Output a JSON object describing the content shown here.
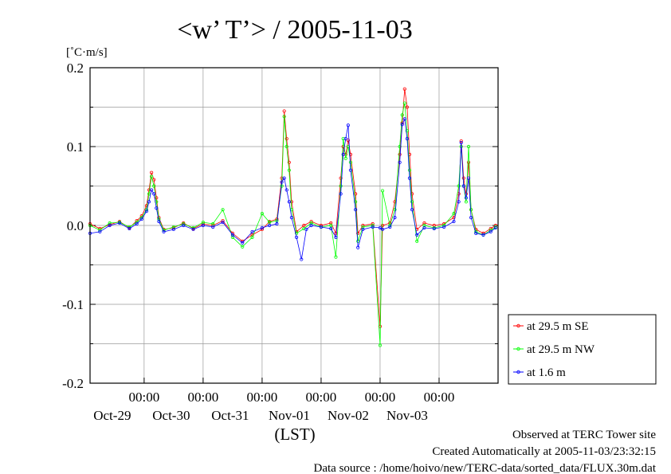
{
  "chart_data": {
    "type": "line",
    "title": "<w’ T’> / 2005-11-03",
    "ylabel": "[˚C·m/s]",
    "xlabel": "(LST)",
    "ylim": [
      -0.2,
      0.2
    ],
    "yticks": [
      {
        "value": 0.2,
        "label": "0.2"
      },
      {
        "value": 0.1,
        "label": "0.1"
      },
      {
        "value": 0.0,
        "label": "0.0"
      },
      {
        "value": -0.1,
        "label": "-0.1"
      },
      {
        "value": -0.2,
        "label": "-0.2"
      }
    ],
    "xlim": [
      "2005-10-28 02:00",
      "2005-11-04 00:00"
    ],
    "xticks": [
      {
        "x": "2005-10-29 00:00",
        "time": "00:00",
        "date": "Oct-29"
      },
      {
        "x": "2005-10-30 00:00",
        "time": "00:00",
        "date": "Oct-30"
      },
      {
        "x": "2005-10-31 00:00",
        "time": "00:00",
        "date": "Oct-31"
      },
      {
        "x": "2005-11-01 00:00",
        "time": "00:00",
        "date": "Nov-01"
      },
      {
        "x": "2005-11-02 00:00",
        "time": "00:00",
        "date": "Nov-02"
      },
      {
        "x": "2005-11-03 00:00",
        "time": "00:00",
        "date": "Nov-03"
      }
    ],
    "grid": true,
    "legend_position": "right",
    "series": [
      {
        "name": "at 29.5 m SE",
        "color": "#ff0000",
        "points": [
          [
            "2005-10-28 02:00",
            0.002
          ],
          [
            "2005-10-28 06:00",
            -0.004
          ],
          [
            "2005-10-28 10:00",
            0.001
          ],
          [
            "2005-10-28 14:00",
            0.005
          ],
          [
            "2005-10-28 18:00",
            -0.003
          ],
          [
            "2005-10-28 21:00",
            0.006
          ],
          [
            "2005-10-28 23:00",
            0.012
          ],
          [
            "2005-10-29 01:00",
            0.025
          ],
          [
            "2005-10-29 02:00",
            0.045
          ],
          [
            "2005-10-29 03:00",
            0.067
          ],
          [
            "2005-10-29 04:00",
            0.058
          ],
          [
            "2005-10-29 05:00",
            0.035
          ],
          [
            "2005-10-29 06:00",
            0.01
          ],
          [
            "2005-10-29 08:00",
            -0.005
          ],
          [
            "2005-10-29 12:00",
            -0.003
          ],
          [
            "2005-10-29 16:00",
            0.003
          ],
          [
            "2005-10-29 20:00",
            -0.004
          ],
          [
            "2005-10-30 00:00",
            0.002
          ],
          [
            "2005-10-30 04:00",
            0.0
          ],
          [
            "2005-10-30 08:00",
            0.006
          ],
          [
            "2005-10-30 12:00",
            -0.01
          ],
          [
            "2005-10-30 16:00",
            -0.02
          ],
          [
            "2005-10-30 20:00",
            -0.012
          ],
          [
            "2005-10-31 00:00",
            -0.005
          ],
          [
            "2005-10-31 03:00",
            0.005
          ],
          [
            "2005-10-31 06:00",
            0.008
          ],
          [
            "2005-10-31 08:00",
            0.06
          ],
          [
            "2005-10-31 09:00",
            0.145
          ],
          [
            "2005-10-31 10:00",
            0.11
          ],
          [
            "2005-10-31 11:00",
            0.08
          ],
          [
            "2005-10-31 12:00",
            0.03
          ],
          [
            "2005-10-31 14:00",
            -0.008
          ],
          [
            "2005-10-31 17:00",
            0.0
          ],
          [
            "2005-10-31 20:00",
            0.005
          ],
          [
            "2005-11-01 00:00",
            0.0
          ],
          [
            "2005-11-01 04:00",
            0.003
          ],
          [
            "2005-11-01 06:00",
            -0.01
          ],
          [
            "2005-11-01 08:00",
            0.06
          ],
          [
            "2005-11-01 09:00",
            0.1
          ],
          [
            "2005-11-01 10:00",
            0.09
          ],
          [
            "2005-11-01 11:00",
            0.108
          ],
          [
            "2005-11-01 12:00",
            0.09
          ],
          [
            "2005-11-01 14:00",
            0.04
          ],
          [
            "2005-11-01 15:00",
            -0.01
          ],
          [
            "2005-11-01 17:00",
            0.0
          ],
          [
            "2005-11-01 21:00",
            0.002
          ],
          [
            "2005-11-02 00:00",
            -0.128
          ],
          [
            "2005-11-02 01:00",
            0.0
          ],
          [
            "2005-11-02 04:00",
            0.003
          ],
          [
            "2005-11-02 06:00",
            0.03
          ],
          [
            "2005-11-02 08:00",
            0.09
          ],
          [
            "2005-11-02 09:00",
            0.13
          ],
          [
            "2005-11-02 10:00",
            0.173
          ],
          [
            "2005-11-02 11:00",
            0.15
          ],
          [
            "2005-11-02 12:00",
            0.09
          ],
          [
            "2005-11-02 13:00",
            0.04
          ],
          [
            "2005-11-02 15:00",
            -0.005
          ],
          [
            "2005-11-02 18:00",
            0.003
          ],
          [
            "2005-11-02 22:00",
            0.0
          ],
          [
            "2005-11-03 02:00",
            0.002
          ],
          [
            "2005-11-03 06:00",
            0.01
          ],
          [
            "2005-11-03 08:00",
            0.04
          ],
          [
            "2005-11-03 09:00",
            0.107
          ],
          [
            "2005-11-03 10:00",
            0.06
          ],
          [
            "2005-11-03 11:00",
            0.04
          ],
          [
            "2005-11-03 12:00",
            0.08
          ],
          [
            "2005-11-03 13:00",
            0.02
          ],
          [
            "2005-11-03 15:00",
            -0.005
          ],
          [
            "2005-11-03 18:00",
            -0.01
          ],
          [
            "2005-11-03 21:00",
            -0.004
          ],
          [
            "2005-11-03 23:00",
            0.0
          ]
        ]
      },
      {
        "name": "at 29.5 m NW",
        "color": "#00ff00",
        "points": [
          [
            "2005-10-28 02:00",
            0.0
          ],
          [
            "2005-10-28 06:00",
            -0.006
          ],
          [
            "2005-10-28 10:00",
            0.003
          ],
          [
            "2005-10-28 14:00",
            0.004
          ],
          [
            "2005-10-28 18:00",
            -0.002
          ],
          [
            "2005-10-28 21:00",
            0.004
          ],
          [
            "2005-10-28 23:00",
            0.01
          ],
          [
            "2005-10-29 01:00",
            0.02
          ],
          [
            "2005-10-29 02:00",
            0.04
          ],
          [
            "2005-10-29 03:00",
            0.062
          ],
          [
            "2005-10-29 04:00",
            0.05
          ],
          [
            "2005-10-29 05:00",
            0.03
          ],
          [
            "2005-10-29 06:00",
            0.008
          ],
          [
            "2005-10-29 08:00",
            -0.006
          ],
          [
            "2005-10-29 12:00",
            -0.002
          ],
          [
            "2005-10-29 16:00",
            0.002
          ],
          [
            "2005-10-29 20:00",
            -0.003
          ],
          [
            "2005-10-30 00:00",
            0.004
          ],
          [
            "2005-10-30 04:00",
            0.002
          ],
          [
            "2005-10-30 08:00",
            0.02
          ],
          [
            "2005-10-30 12:00",
            -0.015
          ],
          [
            "2005-10-30 16:00",
            -0.027
          ],
          [
            "2005-10-30 20:00",
            -0.015
          ],
          [
            "2005-10-31 00:00",
            0.015
          ],
          [
            "2005-10-31 03:00",
            0.004
          ],
          [
            "2005-10-31 06:00",
            0.006
          ],
          [
            "2005-10-31 08:00",
            0.05
          ],
          [
            "2005-10-31 09:00",
            0.138
          ],
          [
            "2005-10-31 10:00",
            0.1
          ],
          [
            "2005-10-31 11:00",
            0.07
          ],
          [
            "2005-10-31 12:00",
            0.02
          ],
          [
            "2005-10-31 14:00",
            -0.01
          ],
          [
            "2005-10-31 17:00",
            -0.004
          ],
          [
            "2005-10-31 20:00",
            0.003
          ],
          [
            "2005-11-01 00:00",
            -0.002
          ],
          [
            "2005-11-01 04:00",
            0.0
          ],
          [
            "2005-11-01 06:00",
            -0.04
          ],
          [
            "2005-11-01 08:00",
            0.05
          ],
          [
            "2005-11-01 09:00",
            0.11
          ],
          [
            "2005-11-01 10:00",
            0.085
          ],
          [
            "2005-11-01 11:00",
            0.1
          ],
          [
            "2005-11-01 12:00",
            0.08
          ],
          [
            "2005-11-01 14:00",
            0.03
          ],
          [
            "2005-11-01 15:00",
            -0.02
          ],
          [
            "2005-11-01 17:00",
            -0.002
          ],
          [
            "2005-11-01 21:00",
            0.0
          ],
          [
            "2005-11-02 00:00",
            -0.152
          ],
          [
            "2005-11-02 01:00",
            0.044
          ],
          [
            "2005-11-02 04:00",
            0.0
          ],
          [
            "2005-11-02 06:00",
            0.02
          ],
          [
            "2005-11-02 08:00",
            0.1
          ],
          [
            "2005-11-02 09:00",
            0.14
          ],
          [
            "2005-11-02 10:00",
            0.155
          ],
          [
            "2005-11-02 11:00",
            0.12
          ],
          [
            "2005-11-02 12:00",
            0.07
          ],
          [
            "2005-11-02 13:00",
            0.03
          ],
          [
            "2005-11-02 15:00",
            -0.02
          ],
          [
            "2005-11-02 18:00",
            0.0
          ],
          [
            "2005-11-02 22:00",
            -0.003
          ],
          [
            "2005-11-03 02:00",
            0.0
          ],
          [
            "2005-11-03 06:00",
            0.015
          ],
          [
            "2005-11-03 08:00",
            0.05
          ],
          [
            "2005-11-03 09:00",
            0.1
          ],
          [
            "2005-11-03 10:00",
            0.05
          ],
          [
            "2005-11-03 11:00",
            0.03
          ],
          [
            "2005-11-03 12:00",
            0.1
          ],
          [
            "2005-11-03 13:00",
            0.02
          ],
          [
            "2005-11-03 15:00",
            -0.008
          ],
          [
            "2005-11-03 18:00",
            -0.012
          ],
          [
            "2005-11-03 21:00",
            -0.006
          ],
          [
            "2005-11-03 23:00",
            -0.002
          ]
        ]
      },
      {
        "name": "at 1.6 m",
        "color": "#0000ff",
        "points": [
          [
            "2005-10-28 02:00",
            -0.01
          ],
          [
            "2005-10-28 06:00",
            -0.008
          ],
          [
            "2005-10-28 10:00",
            0.0
          ],
          [
            "2005-10-28 14:00",
            0.003
          ],
          [
            "2005-10-28 18:00",
            -0.004
          ],
          [
            "2005-10-28 21:00",
            0.002
          ],
          [
            "2005-10-28 23:00",
            0.008
          ],
          [
            "2005-10-29 01:00",
            0.018
          ],
          [
            "2005-10-29 02:00",
            0.03
          ],
          [
            "2005-10-29 03:00",
            0.045
          ],
          [
            "2005-10-29 04:00",
            0.04
          ],
          [
            "2005-10-29 05:00",
            0.022
          ],
          [
            "2005-10-29 06:00",
            0.005
          ],
          [
            "2005-10-29 08:00",
            -0.008
          ],
          [
            "2005-10-29 12:00",
            -0.005
          ],
          [
            "2005-10-29 16:00",
            0.0
          ],
          [
            "2005-10-29 20:00",
            -0.005
          ],
          [
            "2005-10-30 00:00",
            0.0
          ],
          [
            "2005-10-30 04:00",
            -0.002
          ],
          [
            "2005-10-30 08:00",
            0.004
          ],
          [
            "2005-10-30 12:00",
            -0.012
          ],
          [
            "2005-10-30 16:00",
            -0.022
          ],
          [
            "2005-10-30 20:00",
            -0.008
          ],
          [
            "2005-10-31 00:00",
            -0.003
          ],
          [
            "2005-10-31 03:00",
            0.0
          ],
          [
            "2005-10-31 06:00",
            0.002
          ],
          [
            "2005-10-31 08:00",
            0.055
          ],
          [
            "2005-10-31 09:00",
            0.06
          ],
          [
            "2005-10-31 10:00",
            0.045
          ],
          [
            "2005-10-31 11:00",
            0.03
          ],
          [
            "2005-10-31 12:00",
            0.01
          ],
          [
            "2005-10-31 14:00",
            -0.015
          ],
          [
            "2005-10-31 16:00",
            -0.043
          ],
          [
            "2005-10-31 18:00",
            -0.005
          ],
          [
            "2005-10-31 20:00",
            0.0
          ],
          [
            "2005-11-01 00:00",
            -0.002
          ],
          [
            "2005-11-01 04:00",
            -0.004
          ],
          [
            "2005-11-01 06:00",
            -0.015
          ],
          [
            "2005-11-01 08:00",
            0.04
          ],
          [
            "2005-11-01 09:00",
            0.09
          ],
          [
            "2005-11-01 10:00",
            0.11
          ],
          [
            "2005-11-01 11:00",
            0.127
          ],
          [
            "2005-11-01 12:00",
            0.07
          ],
          [
            "2005-11-01 14:00",
            0.02
          ],
          [
            "2005-11-01 15:00",
            -0.028
          ],
          [
            "2005-11-01 17:00",
            -0.005
          ],
          [
            "2005-11-01 21:00",
            -0.002
          ],
          [
            "2005-11-02 00:00",
            -0.003
          ],
          [
            "2005-11-02 01:00",
            -0.005
          ],
          [
            "2005-11-02 04:00",
            -0.002
          ],
          [
            "2005-11-02 06:00",
            0.01
          ],
          [
            "2005-11-02 08:00",
            0.08
          ],
          [
            "2005-11-02 09:00",
            0.128
          ],
          [
            "2005-11-02 10:00",
            0.135
          ],
          [
            "2005-11-02 11:00",
            0.11
          ],
          [
            "2005-11-02 12:00",
            0.06
          ],
          [
            "2005-11-02 13:00",
            0.02
          ],
          [
            "2005-11-02 15:00",
            -0.012
          ],
          [
            "2005-11-02 18:00",
            -0.003
          ],
          [
            "2005-11-02 22:00",
            -0.004
          ],
          [
            "2005-11-03 02:00",
            -0.002
          ],
          [
            "2005-11-03 06:00",
            0.005
          ],
          [
            "2005-11-03 08:00",
            0.03
          ],
          [
            "2005-11-03 09:00",
            0.105
          ],
          [
            "2005-11-03 10:00",
            0.05
          ],
          [
            "2005-11-03 11:00",
            0.035
          ],
          [
            "2005-11-03 12:00",
            0.06
          ],
          [
            "2005-11-03 13:00",
            0.01
          ],
          [
            "2005-11-03 15:00",
            -0.01
          ],
          [
            "2005-11-03 18:00",
            -0.012
          ],
          [
            "2005-11-03 21:00",
            -0.008
          ],
          [
            "2005-11-03 23:00",
            -0.003
          ]
        ]
      }
    ]
  },
  "footer": {
    "line1": "Observed at TERC Tower site",
    "line2": "Created Automatically at 2005-11-03/23:32:15",
    "line3": "Data source : /home/hoivo/new/TERC-data/sorted_data/FLUX.30m.dat"
  }
}
